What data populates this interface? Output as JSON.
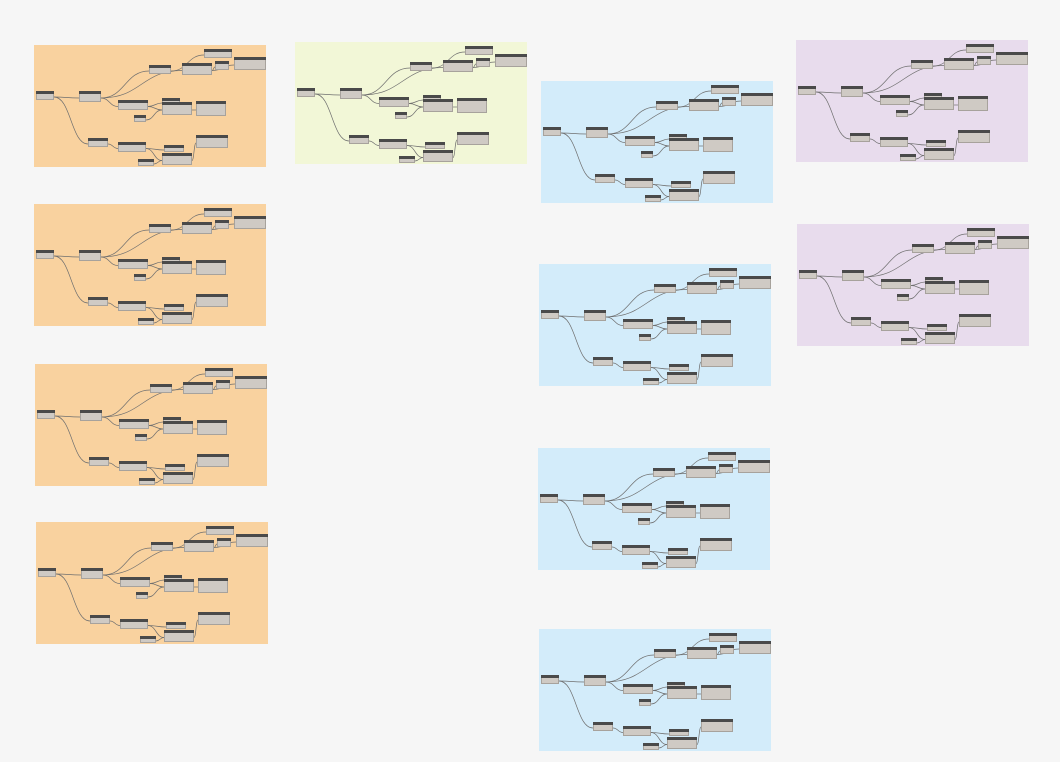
{
  "workspace": {
    "background": "#f6f6f6",
    "group_colors": {
      "orange": "#f9d29f",
      "lime": "#f2f7d7",
      "blue": "#d3ecfa",
      "purple": "#e8dced"
    },
    "node_header_color": "#4a4a4a",
    "node_body_color": "#cfcac4",
    "wire_color": "#6f6f6f",
    "groups": [
      {
        "id": "group-1",
        "color": "orange"
      },
      {
        "id": "group-2",
        "color": "orange"
      },
      {
        "id": "group-3",
        "color": "orange"
      },
      {
        "id": "group-4",
        "color": "orange"
      },
      {
        "id": "group-5",
        "color": "lime"
      },
      {
        "id": "group-6",
        "color": "blue"
      },
      {
        "id": "group-7",
        "color": "blue"
      },
      {
        "id": "group-8",
        "color": "blue"
      },
      {
        "id": "group-9",
        "color": "blue"
      },
      {
        "id": "group-10",
        "color": "purple"
      },
      {
        "id": "group-11",
        "color": "purple"
      }
    ]
  }
}
